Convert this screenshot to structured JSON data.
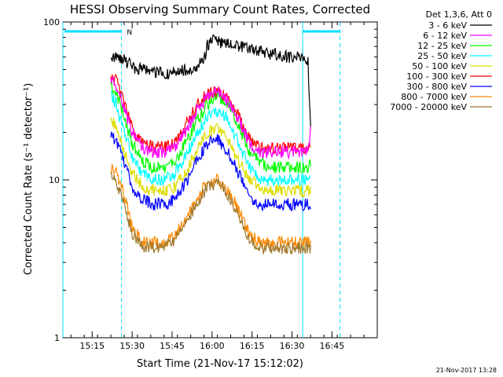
{
  "chart_data": {
    "type": "line",
    "title": "HESSI Observing Summary Count Rates, Corrected",
    "xlabel": "Start Time (21-Nov-17 15:12:02)",
    "ylabel": "Corrected Count Rate (s⁻¹ detector⁻¹)",
    "yscale": "log",
    "ylim": [
      1,
      100
    ],
    "xlim_minutes": [
      552,
      1002
    ],
    "x_start": "15:12:02",
    "x_unit": "minutes after 15:12:02",
    "xticks": [
      {
        "label": "15:15",
        "value": 178
      },
      {
        "label": "15:30",
        "value": 1078
      },
      {
        "label": "15:45",
        "value": 1978
      },
      {
        "label": "16:00",
        "value": 2878
      },
      {
        "label": "16:15",
        "value": 3778
      },
      {
        "label": "16:30",
        "value": 4678
      },
      {
        "label": "16:45",
        "value": 5578
      }
    ],
    "yticks": [
      {
        "label": "1",
        "value": 1
      },
      {
        "label": "10",
        "value": 10
      },
      {
        "label": "100",
        "value": 100
      }
    ],
    "legend_title": "Det 1,3,6, Att 0",
    "legend_position": "right",
    "markers": {
      "cyan_solid": [
        -8,
        82
      ],
      "cyan_dashed": [
        14,
        96
      ],
      "night_bar_label": "N"
    },
    "series": [
      {
        "name": "3 - 6 keV",
        "color": "#000000",
        "x": [
          10,
          12,
          15,
          18,
          22,
          26,
          30,
          34,
          38,
          42,
          45,
          46,
          48,
          52,
          56,
          60,
          64,
          68,
          72,
          76,
          80,
          82,
          84,
          85
        ],
        "y": [
          60,
          62,
          58,
          52,
          50,
          48,
          47,
          48,
          50,
          52,
          56,
          70,
          76,
          74,
          72,
          70,
          66,
          64,
          62,
          60,
          59,
          58,
          58,
          20
        ]
      },
      {
        "name": "6 - 12 keV",
        "color": "#ff00ff",
        "x": [
          10,
          12,
          15,
          18,
          22,
          26,
          30,
          34,
          38,
          42,
          46,
          50,
          54,
          58,
          62,
          66,
          70,
          74,
          78,
          82,
          84,
          85
        ],
        "y": [
          42,
          40,
          28,
          20,
          16,
          15,
          15,
          16,
          20,
          27,
          33,
          36,
          32,
          24,
          17,
          15,
          15,
          15,
          15,
          15,
          16,
          20
        ]
      },
      {
        "name": "12 - 25 keV",
        "color": "#00ff00",
        "x": [
          10,
          12,
          15,
          18,
          22,
          26,
          30,
          34,
          38,
          42,
          46,
          50,
          54,
          58,
          62,
          66,
          70,
          74,
          78,
          82,
          84,
          85
        ],
        "y": [
          40,
          36,
          25,
          17,
          13,
          12,
          12,
          13,
          17,
          23,
          30,
          34,
          30,
          22,
          15,
          13,
          12,
          12,
          12,
          12,
          12,
          13
        ]
      },
      {
        "name": "25 - 50 keV",
        "color": "#00ffff",
        "x": [
          10,
          12,
          15,
          18,
          22,
          26,
          30,
          34,
          38,
          42,
          46,
          50,
          54,
          58,
          62,
          66,
          70,
          74,
          78,
          82,
          84,
          85
        ],
        "y": [
          35,
          30,
          20,
          14,
          11,
          10,
          10,
          11,
          14,
          19,
          25,
          27,
          24,
          17,
          12,
          10,
          10,
          10,
          10,
          10,
          10,
          11
        ]
      },
      {
        "name": "50 - 100 keV",
        "color": "#dddd00",
        "x": [
          10,
          12,
          15,
          18,
          22,
          26,
          30,
          34,
          38,
          42,
          46,
          50,
          54,
          58,
          62,
          66,
          70,
          74,
          78,
          82,
          84,
          85
        ],
        "y": [
          25,
          22,
          15,
          11,
          9,
          8.5,
          8.5,
          9,
          11,
          15,
          20,
          21,
          18,
          13,
          10,
          9,
          8.5,
          8.5,
          8.5,
          8.5,
          8.5,
          9
        ]
      },
      {
        "name": "100 - 300 keV",
        "color": "#ff0000",
        "x": [
          10,
          12,
          15,
          18,
          22,
          26,
          30,
          34,
          38,
          42,
          46,
          50,
          54,
          58,
          62,
          66,
          70,
          74,
          78,
          82,
          84,
          85
        ],
        "y": [
          45,
          42,
          30,
          21,
          17,
          16,
          16,
          17,
          22,
          29,
          35,
          37,
          33,
          25,
          18,
          16,
          16,
          16,
          16,
          16,
          16,
          16
        ]
      },
      {
        "name": "300 - 800 keV",
        "color": "#0000ff",
        "x": [
          10,
          12,
          15,
          18,
          22,
          26,
          30,
          34,
          38,
          42,
          46,
          50,
          54,
          58,
          62,
          66,
          70,
          74,
          78,
          82,
          84,
          85
        ],
        "y": [
          19,
          18,
          13,
          9,
          7.5,
          7,
          7,
          7.5,
          9.5,
          13,
          17,
          18,
          15,
          11,
          8,
          7,
          7,
          7,
          7,
          7,
          7,
          7
        ]
      },
      {
        "name": "800 - 7000 keV",
        "color": "#ff8800",
        "x": [
          10,
          12,
          15,
          18,
          22,
          26,
          30,
          34,
          38,
          42,
          46,
          50,
          54,
          58,
          62,
          66,
          70,
          74,
          78,
          82,
          84,
          85
        ],
        "y": [
          12,
          11,
          8,
          5,
          4,
          4,
          4,
          4.5,
          5.5,
          7.5,
          9.5,
          10,
          8.5,
          6.5,
          4.5,
          4,
          4,
          4,
          4,
          4,
          4,
          4
        ]
      },
      {
        "name": "7000 - 20000 keV",
        "color": "#a0782d",
        "x": [
          10,
          12,
          15,
          18,
          22,
          26,
          30,
          34,
          38,
          42,
          46,
          50,
          54,
          58,
          62,
          66,
          70,
          74,
          78,
          82,
          84,
          85
        ],
        "y": [
          11,
          10,
          7,
          4.6,
          3.8,
          3.7,
          3.7,
          4.2,
          5.2,
          7,
          9,
          9.5,
          8,
          6,
          4.2,
          3.7,
          3.7,
          3.7,
          3.7,
          3.7,
          3.7,
          3.7
        ]
      }
    ]
  },
  "footer": {
    "timestamp": "21-Nov-2017 13:28"
  }
}
